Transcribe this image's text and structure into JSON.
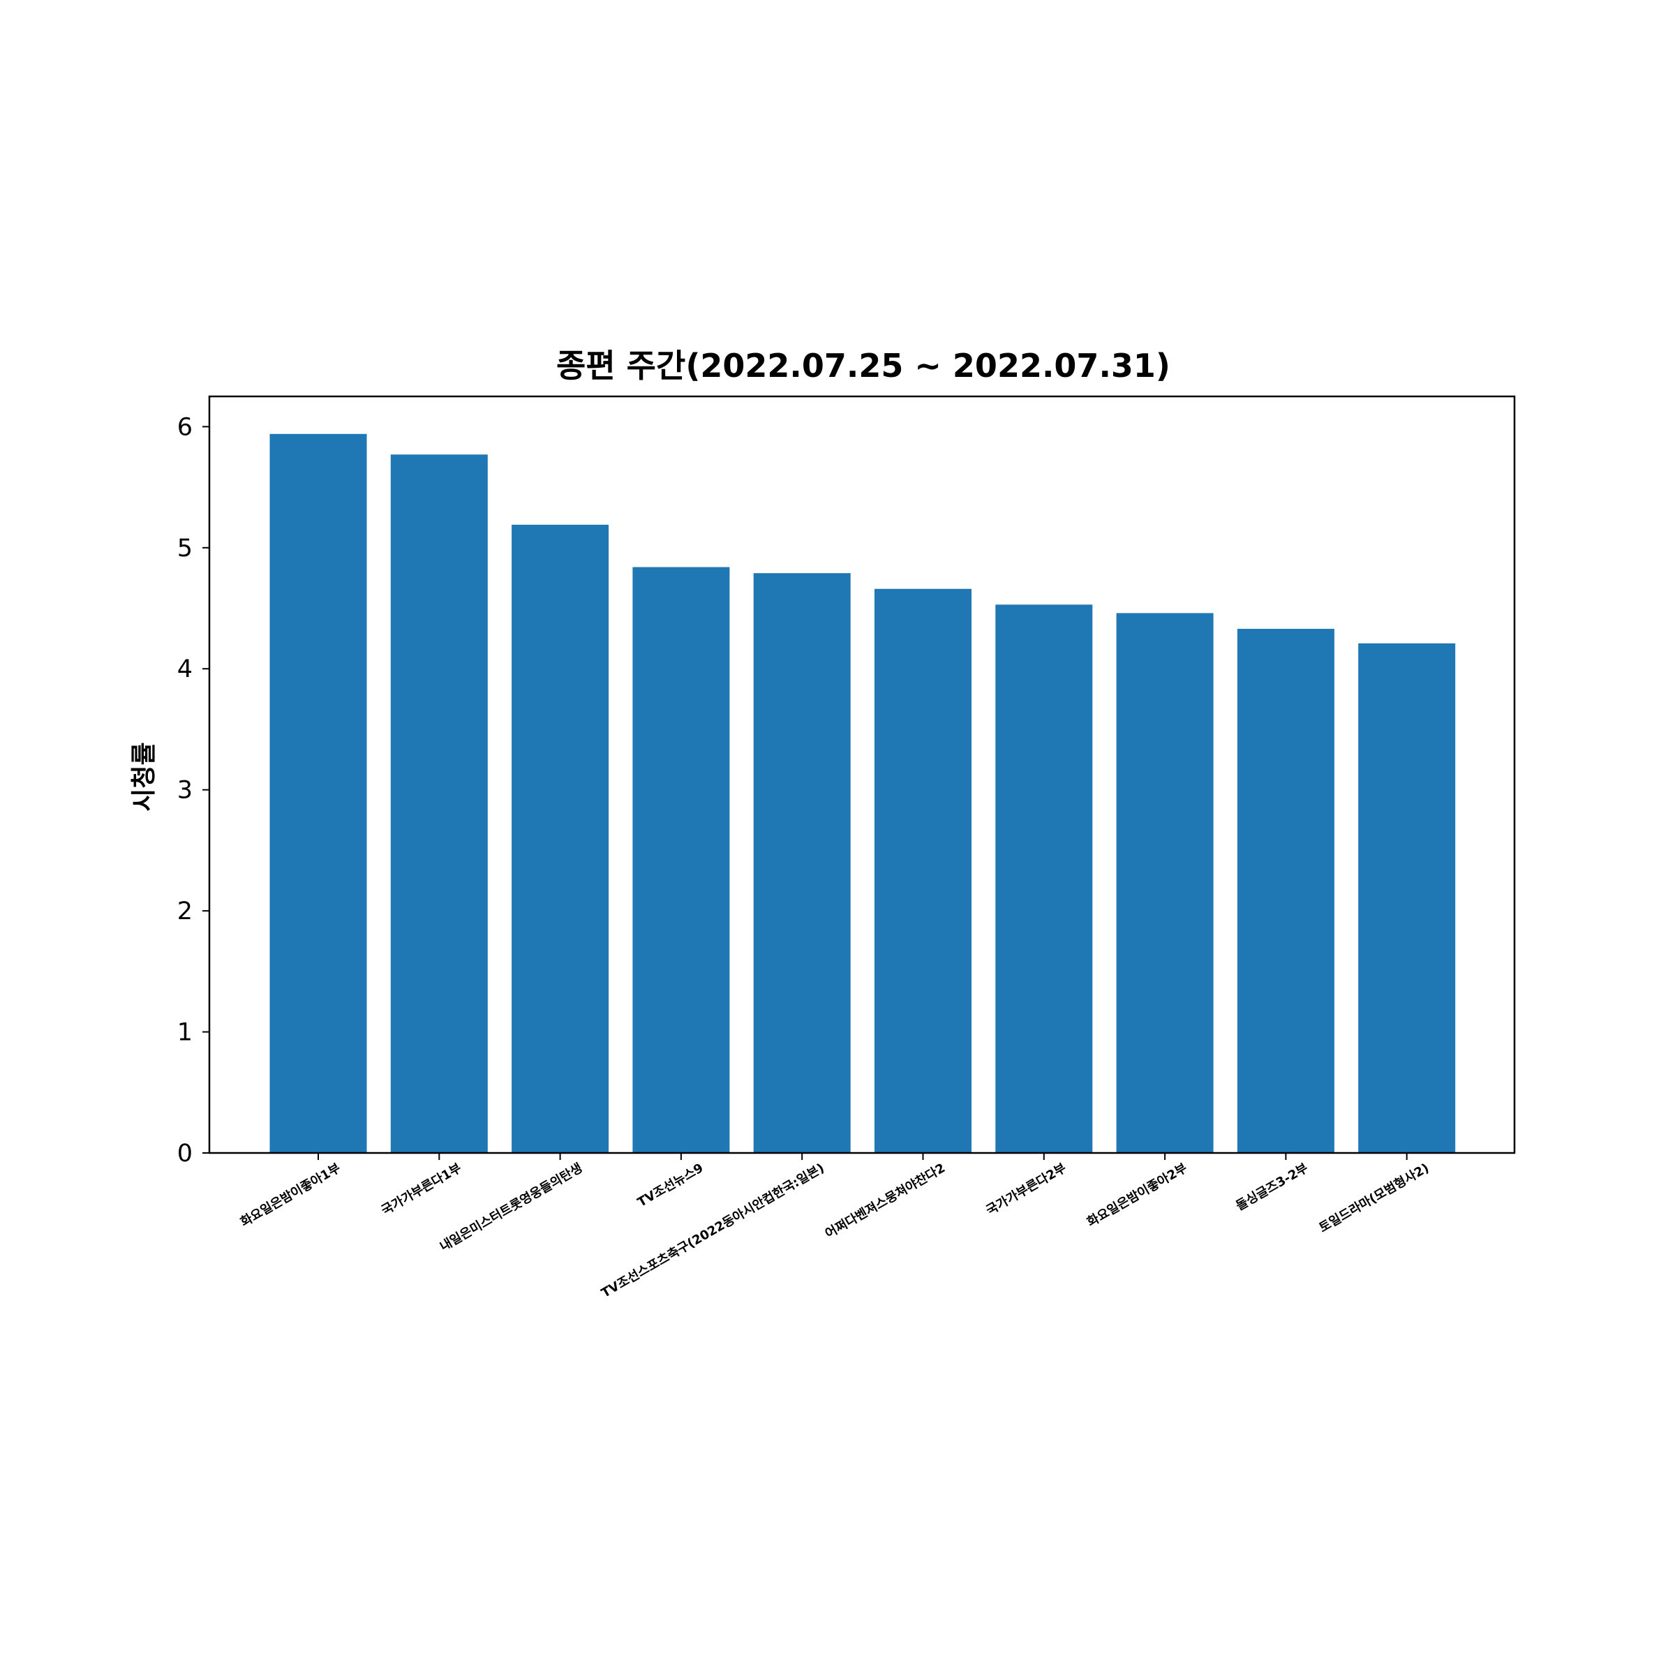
{
  "chart_data": {
    "type": "bar",
    "title": "종편 주간(2022.07.25 ~ 2022.07.31)",
    "xlabel": "",
    "ylabel": "시청률",
    "ylim": [
      0,
      6.25
    ],
    "yticks": [
      0,
      1,
      2,
      3,
      4,
      5,
      6
    ],
    "categories": [
      "화요일은밤이좋아1부",
      "국가가부른다1부",
      "내일은미스터트롯영웅들의탄생",
      "TV조선뉴스9",
      "TV조선스포츠축구(2022동아시안컵한국:일본)",
      "어쩌다벤져스뭉쳐야찬다2",
      "국가가부른다2부",
      "화요일은밤이좋아2부",
      "돌싱글즈3-2부",
      "토일드라마(모범형사2)"
    ],
    "values": [
      5.94,
      5.77,
      5.19,
      4.84,
      4.79,
      4.66,
      4.53,
      4.46,
      4.33,
      4.21
    ],
    "bar_color": "#1f77b4",
    "grid": false
  }
}
